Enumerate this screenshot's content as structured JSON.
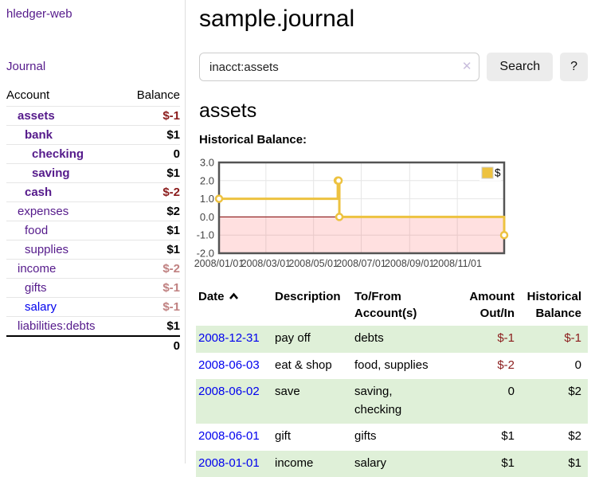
{
  "sidebar": {
    "brand": "hledger-web",
    "journal_link": "Journal",
    "accounts_table": {
      "headers": [
        "Account",
        "Balance"
      ],
      "rows": [
        {
          "account": "assets",
          "balance": "$-1",
          "depth": 1,
          "bold": true,
          "link": "purple",
          "tone": "neg-strong"
        },
        {
          "account": "bank",
          "balance": "$1",
          "depth": 2,
          "bold": true,
          "link": "purple",
          "tone": ""
        },
        {
          "account": "checking",
          "balance": "0",
          "depth": 3,
          "bold": true,
          "link": "purple",
          "tone": ""
        },
        {
          "account": "saving",
          "balance": "$1",
          "depth": 3,
          "bold": true,
          "link": "purple",
          "tone": ""
        },
        {
          "account": "cash",
          "balance": "$-2",
          "depth": 2,
          "bold": true,
          "link": "purple",
          "tone": "neg-strong"
        },
        {
          "account": "expenses",
          "balance": "$2",
          "depth": 1,
          "bold": false,
          "link": "purple",
          "tone": ""
        },
        {
          "account": "food",
          "balance": "$1",
          "depth": 2,
          "bold": false,
          "link": "purple",
          "tone": ""
        },
        {
          "account": "supplies",
          "balance": "$1",
          "depth": 2,
          "bold": false,
          "link": "purple",
          "tone": ""
        },
        {
          "account": "income",
          "balance": "$-2",
          "depth": 1,
          "bold": false,
          "link": "purple",
          "tone": "neg-soft"
        },
        {
          "account": "gifts",
          "balance": "$-1",
          "depth": 2,
          "bold": false,
          "link": "purple",
          "tone": "neg-soft"
        },
        {
          "account": "salary",
          "balance": "$-1",
          "depth": 2,
          "bold": false,
          "link": "blue",
          "tone": "neg-soft"
        },
        {
          "account": "liabilities:debts",
          "balance": "$1",
          "depth": 1,
          "bold": false,
          "link": "purple",
          "tone": ""
        }
      ],
      "total": "0"
    }
  },
  "header": {
    "title": "sample.journal"
  },
  "search": {
    "value": "inacct:assets",
    "clear_icon": "✕",
    "search_button": "Search",
    "help_button": "?"
  },
  "account_page": {
    "heading": "assets",
    "chart_title": "Historical Balance:"
  },
  "chart_data": {
    "type": "line",
    "step": true,
    "series": [
      {
        "name": "$",
        "color": "#edc240",
        "points": [
          [
            "2008-01-01",
            1
          ],
          [
            "2008-06-01",
            2
          ],
          [
            "2008-06-02",
            2
          ],
          [
            "2008-06-03",
            0
          ],
          [
            "2008-12-31",
            -1
          ]
        ]
      }
    ],
    "xlim": [
      "2008-01-01",
      "2008-12-31"
    ],
    "ylim": [
      -2,
      3
    ],
    "x_ticks": [
      "2008/01/01",
      "2008/03/01",
      "2008/05/01",
      "2008/07/01",
      "2008/09/01",
      "2008/11/01"
    ],
    "y_ticks": [
      3,
      2,
      1,
      0,
      -1,
      -2
    ],
    "grid": true,
    "legend_position": "top-right",
    "negative_region": {
      "from": 0,
      "color": "#ff0000",
      "opacity": 0.12
    },
    "zero_line_color": "#800000",
    "grid_color": "#e6e6e6",
    "border_color": "#545454",
    "tick_label_color": "#444444"
  },
  "transactions": {
    "headers": [
      "Date",
      "Description",
      "To/From Account(s)",
      "Amount Out/In",
      "Historical Balance"
    ],
    "sort_icon": "chevron-up",
    "rows": [
      {
        "date": "2008-12-31",
        "description": "pay off",
        "accounts": "debts",
        "amount": "$-1",
        "amount_tone": "neg",
        "balance": "$-1",
        "balance_tone": "neg"
      },
      {
        "date": "2008-06-03",
        "description": "eat & shop",
        "accounts": "food, supplies",
        "amount": "$-2",
        "amount_tone": "neg",
        "balance": "0",
        "balance_tone": ""
      },
      {
        "date": "2008-06-02",
        "description": "save",
        "accounts": "saving, checking",
        "amount": "0",
        "amount_tone": "",
        "balance": "$2",
        "balance_tone": ""
      },
      {
        "date": "2008-06-01",
        "description": "gift",
        "accounts": "gifts",
        "amount": "$1",
        "amount_tone": "",
        "balance": "$2",
        "balance_tone": ""
      },
      {
        "date": "2008-01-01",
        "description": "income",
        "accounts": "salary",
        "amount": "$1",
        "amount_tone": "",
        "balance": "$1",
        "balance_tone": ""
      }
    ]
  },
  "colors": {
    "link_purple": "#551a8b",
    "link_blue": "#0000ee",
    "negative_strong": "#8b1c1c",
    "negative_soft": "#c08181",
    "row_stripe_green": "#dff0d8",
    "button_bg": "#ececec",
    "series_yellow": "#edc240"
  }
}
